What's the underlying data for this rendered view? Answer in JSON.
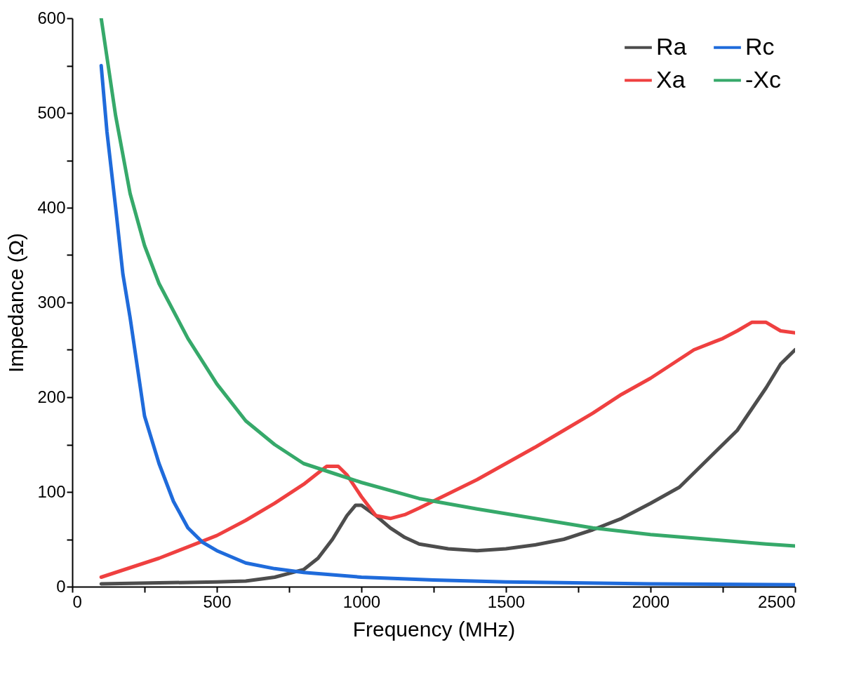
{
  "chart_data": {
    "type": "line",
    "xlabel": "Frequency (MHz)",
    "ylabel": "Impedance (Ω)",
    "xlim": [
      0,
      2500
    ],
    "ylim": [
      0,
      600
    ],
    "xticks": [
      0,
      {
        "value": 250,
        "label": null
      },
      500,
      {
        "value": 750,
        "label": null
      },
      1000,
      {
        "value": 1250,
        "label": null
      },
      1500,
      {
        "value": 1750,
        "label": null
      },
      2000,
      {
        "value": 2250,
        "label": null
      },
      2500
    ],
    "yticks": [
      0,
      {
        "value": 50,
        "label": null
      },
      100,
      {
        "value": 150,
        "label": null
      },
      200,
      {
        "value": 250,
        "label": null
      },
      300,
      {
        "value": 350,
        "label": null
      },
      400,
      {
        "value": 450,
        "label": null
      },
      500,
      {
        "value": 550,
        "label": null
      },
      600
    ],
    "grid": false,
    "legend": "top right",
    "line_style": "solid",
    "series": [
      {
        "name": "Ra",
        "color": "#4d4d4d",
        "x": [
          100,
          300,
          500,
          600,
          700,
          800,
          850,
          900,
          950,
          980,
          1000,
          1050,
          1100,
          1150,
          1200,
          1300,
          1400,
          1500,
          1600,
          1700,
          1800,
          1900,
          2000,
          2100,
          2200,
          2300,
          2400,
          2450,
          2500
        ],
        "values": [
          3,
          4,
          5,
          6,
          10,
          18,
          30,
          50,
          75,
          86,
          86,
          75,
          62,
          52,
          45,
          40,
          38,
          40,
          44,
          50,
          60,
          72,
          88,
          105,
          135,
          165,
          210,
          235,
          250
        ]
      },
      {
        "name": "Xa",
        "color": "#ef4040",
        "x": [
          100,
          200,
          300,
          400,
          500,
          600,
          700,
          800,
          850,
          880,
          920,
          950,
          1000,
          1050,
          1100,
          1150,
          1200,
          1300,
          1400,
          1500,
          1600,
          1700,
          1800,
          1900,
          2000,
          2100,
          2150,
          2250,
          2300,
          2350,
          2400,
          2450,
          2500
        ],
        "values": [
          10,
          20,
          30,
          42,
          54,
          70,
          88,
          108,
          120,
          127,
          127,
          118,
          95,
          75,
          72,
          76,
          83,
          98,
          113,
          130,
          147,
          165,
          183,
          203,
          220,
          240,
          250,
          262,
          270,
          279,
          279,
          270,
          268
        ]
      },
      {
        "name": "Rc",
        "color": "#1f6bdb",
        "x": [
          100,
          120,
          150,
          175,
          200,
          250,
          300,
          350,
          400,
          450,
          500,
          600,
          700,
          800,
          1000,
          1250,
          1500,
          2000,
          2500
        ],
        "values": [
          550,
          480,
          400,
          330,
          284,
          180,
          130,
          90,
          62,
          47,
          38,
          25,
          19,
          15,
          10,
          7,
          5,
          3,
          2
        ]
      },
      {
        "name": "-Xc",
        "color": "#36a96a",
        "x": [
          100,
          150,
          200,
          250,
          300,
          400,
          500,
          600,
          700,
          800,
          900,
          1000,
          1200,
          1400,
          1600,
          1800,
          2000,
          2200,
          2400,
          2500
        ],
        "values": [
          600,
          497,
          415,
          360,
          320,
          262,
          214,
          175,
          150,
          130,
          120,
          110,
          93,
          82,
          72,
          62,
          55,
          50,
          45,
          43
        ]
      }
    ]
  }
}
